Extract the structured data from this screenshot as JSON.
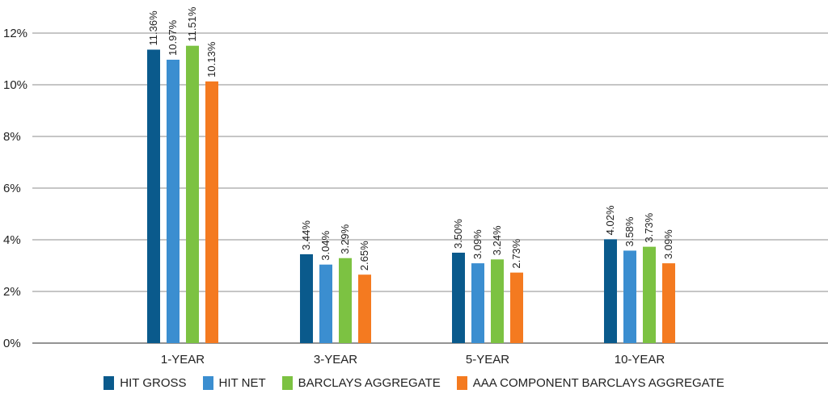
{
  "chart_data": {
    "type": "bar",
    "categories": [
      "1-YEAR",
      "3-YEAR",
      "5-YEAR",
      "10-YEAR"
    ],
    "series": [
      {
        "name": "HIT GROSS",
        "color": "#0a5a8c",
        "values": [
          11.36,
          3.44,
          3.5,
          4.02
        ],
        "labels": [
          "11.36%",
          "3.44%",
          "3.50%",
          "4.02%"
        ]
      },
      {
        "name": "HIT NET",
        "color": "#3b8ed0",
        "values": [
          10.97,
          3.04,
          3.09,
          3.58
        ],
        "labels": [
          "10.97%",
          "3.04%",
          "3.09%",
          "3.58%"
        ]
      },
      {
        "name": "BARCLAYS AGGREGATE",
        "color": "#7cc242",
        "values": [
          11.51,
          3.29,
          3.24,
          3.73
        ],
        "labels": [
          "11.51%",
          "3.29%",
          "3.24%",
          "3.73%"
        ]
      },
      {
        "name": "AAA COMPONENT BARCLAYS AGGREGATE",
        "color": "#f47a20",
        "values": [
          10.13,
          2.65,
          2.73,
          3.09
        ],
        "labels": [
          "10.13%",
          "2.65%",
          "2.73%",
          "3.09%"
        ]
      }
    ],
    "yticks": [
      "0%",
      "2%",
      "4%",
      "6%",
      "8%",
      "10%",
      "12%"
    ],
    "ylim": [
      0,
      12
    ],
    "title": "",
    "xlabel": "",
    "ylabel": "",
    "grid": true,
    "legend_placement": "bottom"
  }
}
